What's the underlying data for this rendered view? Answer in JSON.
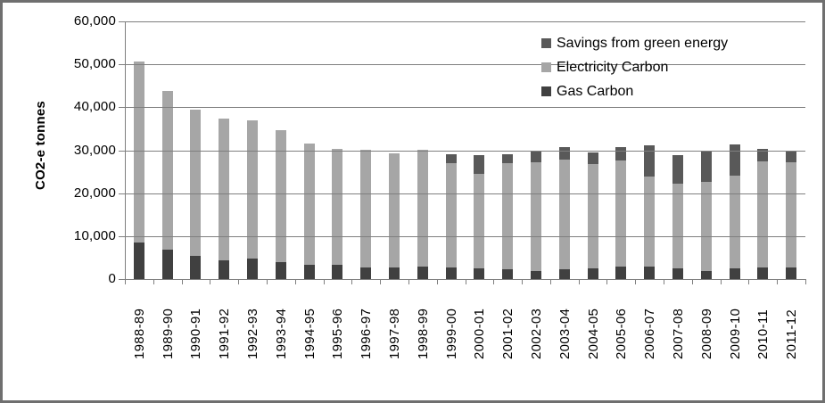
{
  "chart_data": {
    "type": "bar",
    "stacked": true,
    "title": "",
    "xlabel": "",
    "ylabel": "CO2-e tonnes",
    "ylim": [
      0,
      60000
    ],
    "grid": true,
    "legend_position": "top-right",
    "legend_order_top_to_bottom": [
      "Savings from green energy",
      "Electricity Carbon",
      "Gas Carbon"
    ],
    "y_ticks": [
      {
        "value": 0,
        "label": "0"
      },
      {
        "value": 10000,
        "label": "10,000"
      },
      {
        "value": 20000,
        "label": "20,000"
      },
      {
        "value": 30000,
        "label": "30,000"
      },
      {
        "value": 40000,
        "label": "40,000"
      },
      {
        "value": 50000,
        "label": "50,000"
      },
      {
        "value": 60000,
        "label": "60,000"
      }
    ],
    "categories": [
      "1988-89",
      "1989-90",
      "1990-91",
      "1991-92",
      "1992-93",
      "1993-94",
      "1994-95",
      "1995-96",
      "1996-97",
      "1997-98",
      "1998-99",
      "1999-00",
      "2000-01",
      "2001-02",
      "2002-03",
      "2003-04",
      "2004-05",
      "2005-06",
      "2006-07",
      "2007-08",
      "2008-09",
      "2009-10",
      "2010-11",
      "2011-12"
    ],
    "series": [
      {
        "name": "Gas Carbon",
        "color": "#404040",
        "values": [
          8500,
          6800,
          5300,
          4400,
          4800,
          3900,
          3300,
          3300,
          2600,
          2600,
          2900,
          2600,
          2400,
          2300,
          1900,
          2300,
          2500,
          2900,
          2900,
          2500,
          1900,
          2500,
          2700,
          2700
        ]
      },
      {
        "name": "Electricity Carbon",
        "color": "#a6a6a6",
        "values": [
          42200,
          37000,
          34200,
          33000,
          32100,
          30800,
          28200,
          27100,
          27500,
          26700,
          27200,
          24400,
          22200,
          24700,
          25300,
          25600,
          24200,
          24700,
          20900,
          19700,
          20700,
          21500,
          24800,
          24400
        ]
      },
      {
        "name": "Savings from green energy",
        "color": "#595959",
        "values": [
          0,
          0,
          0,
          0,
          0,
          0,
          0,
          0,
          0,
          0,
          0,
          2000,
          4200,
          2100,
          2600,
          2900,
          2700,
          3200,
          7300,
          6700,
          7000,
          7300,
          2900,
          2800
        ]
      }
    ],
    "totals": [
      50700,
      43800,
      39500,
      37400,
      36900,
      34700,
      31500,
      30400,
      30100,
      29300,
      30100,
      29000,
      28800,
      29100,
      29800,
      30800,
      29400,
      30800,
      31100,
      28900,
      29600,
      31300,
      30400,
      29900
    ]
  },
  "colors": {
    "gridline": "#7f7f7f",
    "axis": "#7f7f7f",
    "frame_border": "#6f6f6f",
    "background": "#ffffff",
    "text": "#000000"
  }
}
